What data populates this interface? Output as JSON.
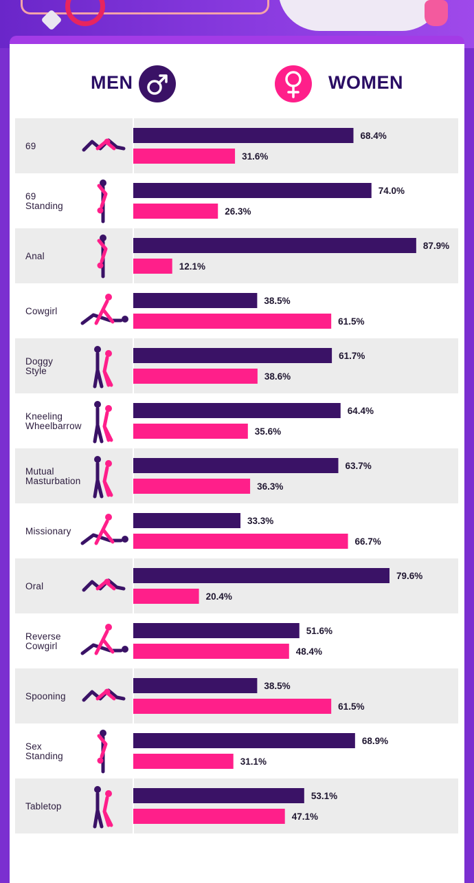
{
  "header": {
    "men_label": "MEN",
    "women_label": "WOMEN"
  },
  "colors": {
    "men": "#3a1266",
    "women": "#ff1f8a",
    "row_shade": "#ececec",
    "background": "#7b2fd0"
  },
  "chart_data": {
    "type": "bar",
    "orientation": "horizontal",
    "title": "",
    "xlabel": "",
    "ylabel": "",
    "xlim": [
      0,
      100
    ],
    "grid": false,
    "legend": "top",
    "categories": [
      "69",
      "69 Standing",
      "Anal",
      "Cowgirl",
      "Doggy Style",
      "Kneeling Wheelbarrow",
      "Mutual Masturbation",
      "Missionary",
      "Oral",
      "Reverse Cowgirl",
      "Spooning",
      "Sex Standing",
      "Tabletop"
    ],
    "series": [
      {
        "name": "MEN",
        "color": "#3a1266",
        "values": [
          68.4,
          74.0,
          87.9,
          38.5,
          61.7,
          64.4,
          63.7,
          33.3,
          79.6,
          51.6,
          38.5,
          68.9,
          53.1
        ]
      },
      {
        "name": "WOMEN",
        "color": "#ff1f8a",
        "values": [
          31.6,
          26.3,
          12.1,
          61.5,
          38.6,
          35.6,
          36.3,
          66.7,
          20.4,
          48.4,
          61.5,
          31.1,
          47.1
        ]
      }
    ],
    "value_labels": {
      "men": [
        "68.4%",
        "74.0%",
        "87.9%",
        "38.5%",
        "61.7%",
        "64.4%",
        "63.7%",
        "33.3%",
        "79.6%",
        "51.6%",
        "38.5%",
        "68.9%",
        "53.1%"
      ],
      "women": [
        "31.6%",
        "26.3%",
        "12.1%",
        "61.5%",
        "38.6%",
        "35.6%",
        "36.3%",
        "66.7%",
        "20.4%",
        "48.4%",
        "61.5%",
        "31.1%",
        "47.1%"
      ]
    },
    "category_label_lines": [
      [
        "69"
      ],
      [
        "69",
        "Standing"
      ],
      [
        "Anal"
      ],
      [
        "Cowgirl"
      ],
      [
        "Doggy",
        "Style"
      ],
      [
        "Kneeling",
        "Wheelbarrow"
      ],
      [
        "Mutual",
        "Masturbation"
      ],
      [
        "Missionary"
      ],
      [
        "Oral"
      ],
      [
        "Reverse",
        "Cowgirl"
      ],
      [
        "Spooning"
      ],
      [
        "Sex",
        "Standing"
      ],
      [
        "Tabletop"
      ]
    ],
    "icons": [
      "69-position-icon",
      "69-standing-position-icon",
      "anal-position-icon",
      "cowgirl-position-icon",
      "doggy-style-position-icon",
      "kneeling-wheelbarrow-position-icon",
      "mutual-masturbation-position-icon",
      "missionary-position-icon",
      "oral-position-icon",
      "reverse-cowgirl-position-icon",
      "spooning-position-icon",
      "sex-standing-position-icon",
      "tabletop-position-icon"
    ]
  }
}
